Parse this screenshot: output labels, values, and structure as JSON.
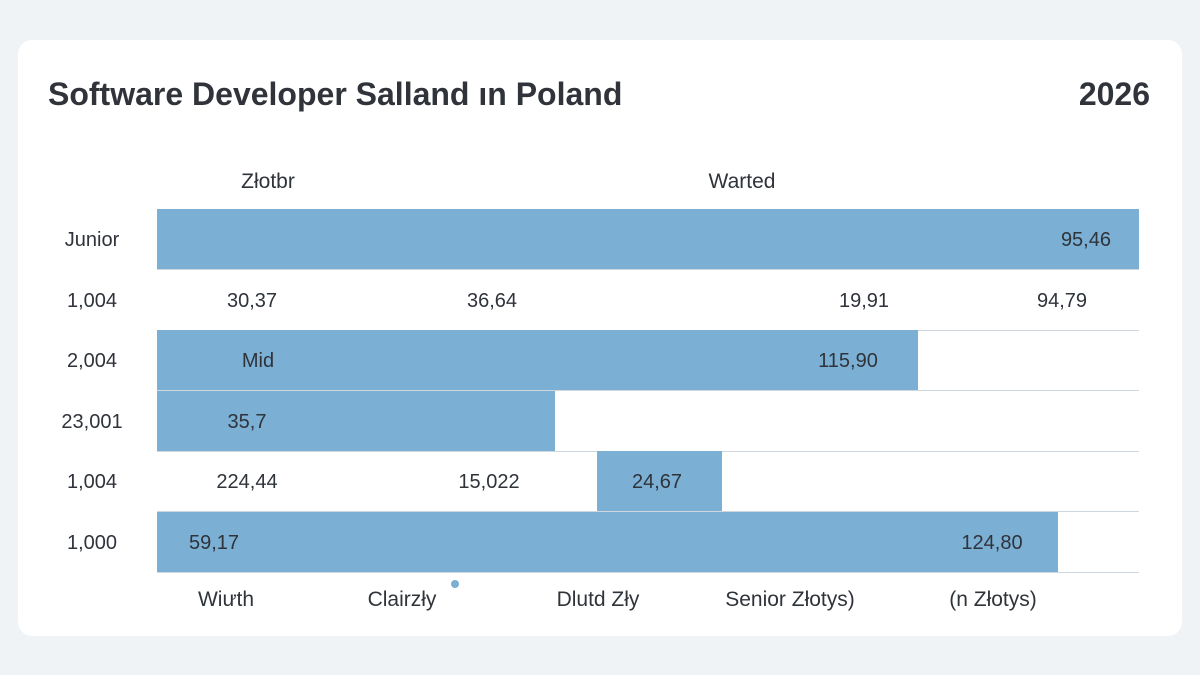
{
  "header": {
    "title": "Software Developer Salland ın Poland",
    "year": "2026"
  },
  "column_headers": [
    "Złotbr",
    "Warted"
  ],
  "footer_labels": [
    "Wiưth",
    "Clairzły",
    "Dlutd Zły",
    "Senior Złotys)",
    "(n Złotys)"
  ],
  "colors": {
    "bar": "#7bafd4",
    "card": "#ffffff",
    "background": "#f0f3f6",
    "separator": "#cfd6de",
    "dot": "#7bafd4"
  },
  "chart_data": {
    "type": "table",
    "title": "Software Developer Salland ın Poland",
    "subtitle": "2026",
    "column_headers": [
      "Złotbr",
      "Warted"
    ],
    "row_labels": [
      "Junior",
      "1,004",
      "2,004",
      "23,001",
      "1,004",
      "1,000"
    ],
    "rows": [
      {
        "label": "Junior",
        "values": [
          "95,46"
        ],
        "bar": true
      },
      {
        "label": "1,004",
        "values": [
          "30,37",
          "36,64",
          "19,91",
          "94,79"
        ],
        "bar": false
      },
      {
        "label": "2,004",
        "values": [
          "Mid",
          "115,90"
        ],
        "bar": true
      },
      {
        "label": "23,001",
        "values": [
          "35,7"
        ],
        "bar": true
      },
      {
        "label": "1,004",
        "values": [
          "224,44",
          "15,022",
          "24,67"
        ],
        "bar": true
      },
      {
        "label": "1,000",
        "values": [
          "59,17",
          "124,80"
        ],
        "bar": true
      }
    ],
    "footer_labels": [
      "Wiưth",
      "Clairzły",
      "Dlutd Zły",
      "Senior Złotys)",
      "(n Złotys)"
    ]
  }
}
